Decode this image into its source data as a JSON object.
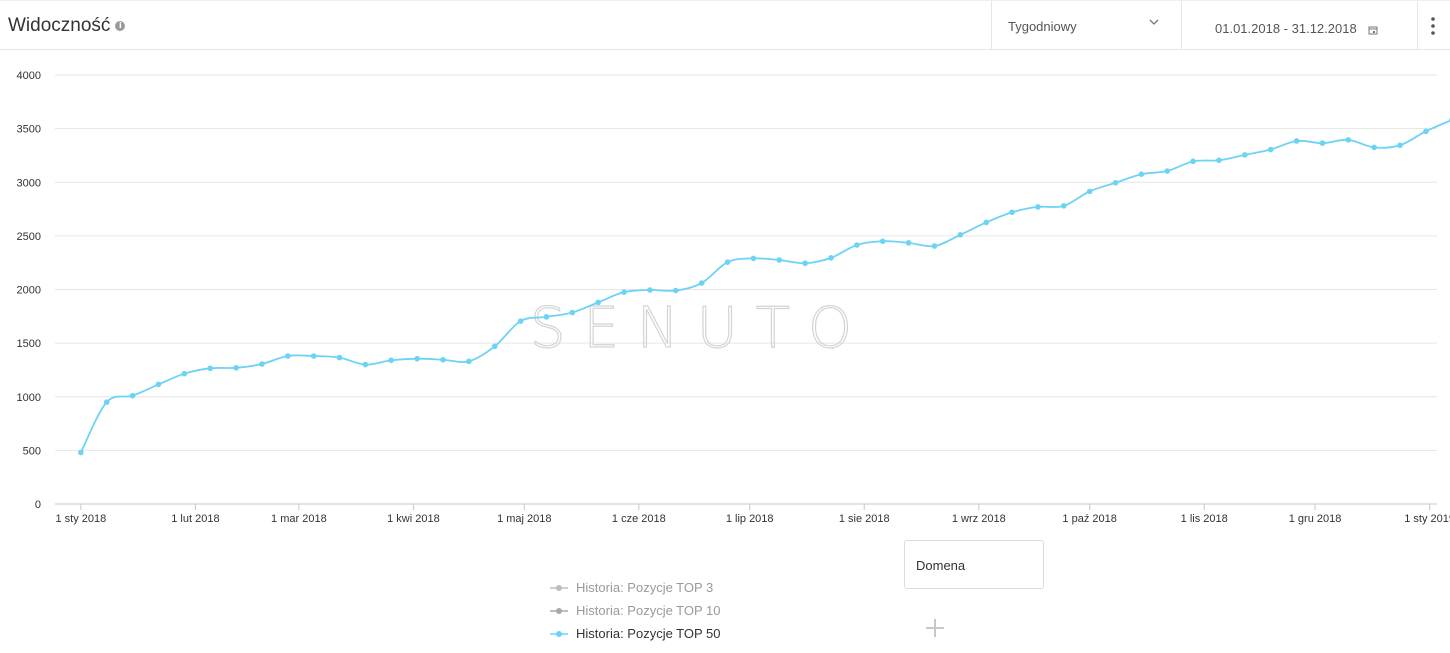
{
  "header": {
    "title": "Widoczność",
    "info_icon": "info-icon",
    "period_dropdown": {
      "value": "Tygodniowy",
      "icon": "chevron-down-icon"
    },
    "date_range": {
      "value": "01.01.2018 - 31.12.2018",
      "icon": "calendar-icon"
    },
    "menu_icon": "kebab-menu-icon"
  },
  "watermark": "SENUTO",
  "legend": [
    {
      "label": "Historia: Pozycje TOP 3",
      "color": "#bdbdbd",
      "active": false
    },
    {
      "label": "Historia: Pozycje TOP 10",
      "color": "#a9a9a9",
      "active": false
    },
    {
      "label": "Historia: Pozycje TOP 50",
      "color": "#6dd3f5",
      "active": true
    }
  ],
  "domain_input": {
    "placeholder": "Domena",
    "value": ""
  },
  "add_icon": "plus-icon",
  "colors": {
    "series": "#6dd3f5",
    "grid": "#e6e6e6",
    "axis_text": "#333333"
  },
  "chart_data": {
    "type": "line",
    "title": "",
    "xlabel": "",
    "ylabel": "",
    "xlim": [
      "2017-12-25",
      "2019-01-03"
    ],
    "ylim": [
      0,
      4000
    ],
    "yticks": [
      0,
      500,
      1000,
      1500,
      2000,
      2500,
      3000,
      3500,
      4000
    ],
    "xticks": [
      {
        "date": "2018-01-01",
        "label": "1 sty 2018"
      },
      {
        "date": "2018-02-01",
        "label": "1 lut 2018"
      },
      {
        "date": "2018-03-01",
        "label": "1 mar 2018"
      },
      {
        "date": "2018-04-01",
        "label": "1 kwi 2018"
      },
      {
        "date": "2018-05-01",
        "label": "1 maj 2018"
      },
      {
        "date": "2018-06-01",
        "label": "1 cze 2018"
      },
      {
        "date": "2018-07-01",
        "label": "1 lip 2018"
      },
      {
        "date": "2018-08-01",
        "label": "1 sie 2018"
      },
      {
        "date": "2018-09-01",
        "label": "1 wrz 2018"
      },
      {
        "date": "2018-10-01",
        "label": "1 paź 2018"
      },
      {
        "date": "2018-11-01",
        "label": "1 lis 2018"
      },
      {
        "date": "2018-12-01",
        "label": "1 gru 2018"
      },
      {
        "date": "2019-01-01",
        "label": "1 sty 2019"
      }
    ],
    "grid": true,
    "legend_position": "bottom",
    "series": [
      {
        "name": "Historia: Pozycje TOP 50",
        "color": "#6dd3f5",
        "points": [
          [
            "2018-01-01",
            480
          ],
          [
            "2018-01-08",
            950
          ],
          [
            "2018-01-15",
            1010
          ],
          [
            "2018-01-22",
            1115
          ],
          [
            "2018-01-29",
            1215
          ],
          [
            "2018-02-05",
            1265
          ],
          [
            "2018-02-12",
            1270
          ],
          [
            "2018-02-19",
            1305
          ],
          [
            "2018-02-26",
            1380
          ],
          [
            "2018-03-05",
            1380
          ],
          [
            "2018-03-12",
            1365
          ],
          [
            "2018-03-19",
            1300
          ],
          [
            "2018-03-26",
            1340
          ],
          [
            "2018-04-02",
            1355
          ],
          [
            "2018-04-09",
            1345
          ],
          [
            "2018-04-16",
            1330
          ],
          [
            "2018-04-23",
            1470
          ],
          [
            "2018-04-30",
            1705
          ],
          [
            "2018-05-07",
            1745
          ],
          [
            "2018-05-14",
            1785
          ],
          [
            "2018-05-21",
            1880
          ],
          [
            "2018-05-28",
            1975
          ],
          [
            "2018-06-04",
            1995
          ],
          [
            "2018-06-11",
            1990
          ],
          [
            "2018-06-18",
            2060
          ],
          [
            "2018-06-25",
            2255
          ],
          [
            "2018-07-02",
            2290
          ],
          [
            "2018-07-09",
            2275
          ],
          [
            "2018-07-16",
            2245
          ],
          [
            "2018-07-23",
            2295
          ],
          [
            "2018-07-30",
            2415
          ],
          [
            "2018-08-06",
            2450
          ],
          [
            "2018-08-13",
            2435
          ],
          [
            "2018-08-20",
            2405
          ],
          [
            "2018-08-27",
            2510
          ],
          [
            "2018-09-03",
            2625
          ],
          [
            "2018-09-10",
            2720
          ],
          [
            "2018-09-17",
            2770
          ],
          [
            "2018-09-24",
            2780
          ],
          [
            "2018-10-01",
            2915
          ],
          [
            "2018-10-08",
            2995
          ],
          [
            "2018-10-15",
            3075
          ],
          [
            "2018-10-22",
            3105
          ],
          [
            "2018-10-29",
            3195
          ],
          [
            "2018-11-05",
            3205
          ],
          [
            "2018-11-12",
            3255
          ],
          [
            "2018-11-19",
            3305
          ],
          [
            "2018-11-26",
            3385
          ],
          [
            "2018-12-03",
            3365
          ],
          [
            "2018-12-10",
            3395
          ],
          [
            "2018-12-17",
            3325
          ],
          [
            "2018-12-24",
            3345
          ],
          [
            "2018-12-31",
            3475
          ],
          [
            "2019-01-07",
            3580
          ]
        ]
      }
    ]
  }
}
